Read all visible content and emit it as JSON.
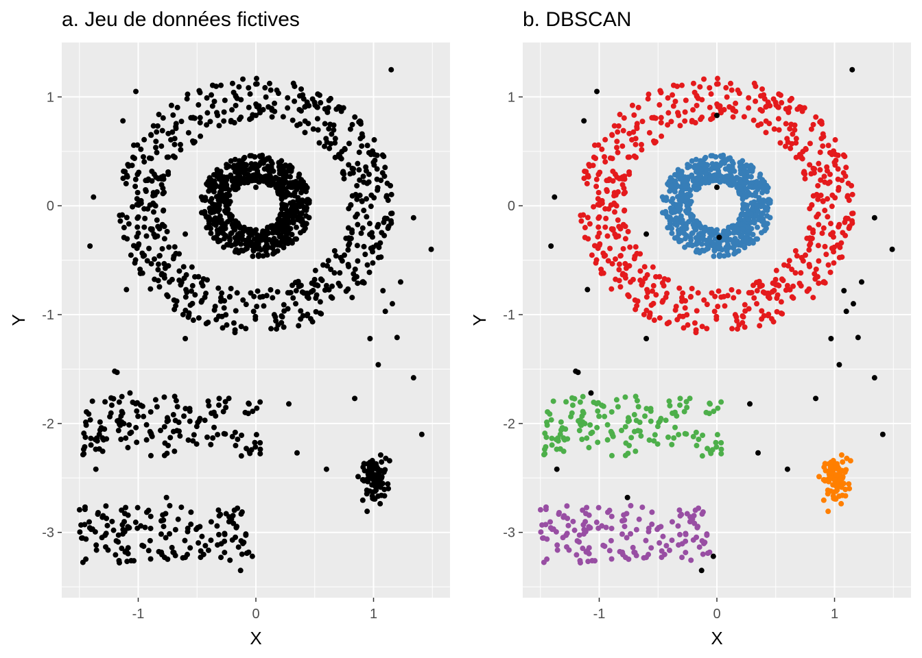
{
  "chart_data": [
    {
      "type": "scatter",
      "title": "a. Jeu de données fictives",
      "xlabel": "X",
      "ylabel": "Y",
      "xlim": [
        -1.65,
        1.65
      ],
      "ylim": [
        -3.6,
        1.5
      ],
      "xticks": [
        -1,
        0,
        1
      ],
      "yticks": [
        1,
        0,
        -1,
        -2,
        -3
      ],
      "grid": true,
      "background": "#EBEBEB",
      "colored_by_cluster": false,
      "point_color": "#000000",
      "clusters": [
        {
          "kind": "ring",
          "cx": 0,
          "cy": 0,
          "r_min": 0.22,
          "r_max": 0.47,
          "n": 700,
          "seed": 11
        },
        {
          "kind": "ring",
          "cx": 0,
          "cy": 0,
          "r_min": 0.78,
          "r_max": 1.18,
          "n": 600,
          "seed": 23
        },
        {
          "kind": "band",
          "x_min": -1.48,
          "x_max": 0.05,
          "y_min": -2.3,
          "y_max": -1.75,
          "n": 150,
          "seed": 37
        },
        {
          "kind": "band",
          "x_min": -1.5,
          "x_max": -0.05,
          "y_min": -3.28,
          "y_max": -2.75,
          "n": 150,
          "seed": 41
        },
        {
          "kind": "blob",
          "cx": 1.0,
          "cy": -2.52,
          "sx": 0.06,
          "sy": 0.1,
          "n": 90,
          "seed": 53
        }
      ],
      "noise": [
        [
          1.15,
          1.25
        ],
        [
          -1.02,
          1.05
        ],
        [
          -1.13,
          0.78
        ],
        [
          -1.38,
          0.08
        ],
        [
          -1.41,
          -0.37
        ],
        [
          -0.6,
          -0.26
        ],
        [
          0.0,
          0.83
        ],
        [
          0.0,
          0.17
        ],
        [
          0.02,
          -0.29
        ],
        [
          1.34,
          -0.11
        ],
        [
          1.49,
          -0.4
        ],
        [
          1.23,
          -0.7
        ],
        [
          1.08,
          -0.78
        ],
        [
          -1.1,
          -0.77
        ],
        [
          1.1,
          -0.97
        ],
        [
          1.16,
          -0.9
        ],
        [
          0.97,
          -1.22
        ],
        [
          1.2,
          -1.21
        ],
        [
          -0.6,
          -1.22
        ],
        [
          1.04,
          -1.46
        ],
        [
          -1.2,
          -1.52
        ],
        [
          -1.18,
          -1.53
        ],
        [
          1.34,
          -1.58
        ],
        [
          -1.07,
          -1.72
        ],
        [
          0.84,
          -1.77
        ],
        [
          0.28,
          -1.82
        ],
        [
          1.41,
          -2.1
        ],
        [
          0.35,
          -2.27
        ],
        [
          -1.36,
          -2.42
        ],
        [
          0.6,
          -2.42
        ],
        [
          -0.76,
          -2.68
        ],
        [
          -0.13,
          -3.35
        ],
        [
          -0.03,
          -3.22
        ]
      ]
    },
    {
      "type": "scatter",
      "title": "b. DBSCAN",
      "xlabel": "X",
      "ylabel": "Y",
      "xlim": [
        -1.65,
        1.65
      ],
      "ylim": [
        -3.6,
        1.5
      ],
      "xticks": [
        -1,
        0,
        1
      ],
      "yticks": [
        1,
        0,
        -1,
        -2,
        -3
      ],
      "grid": true,
      "background": "#EBEBEB",
      "colored_by_cluster": true,
      "noise_color": "#000000",
      "cluster_colors": [
        "#377EB8",
        "#E41A1C",
        "#4DAF4A",
        "#984EA3",
        "#FF7F00"
      ],
      "clusters": [
        {
          "kind": "ring",
          "cx": 0,
          "cy": 0,
          "r_min": 0.22,
          "r_max": 0.47,
          "n": 700,
          "seed": 11
        },
        {
          "kind": "ring",
          "cx": 0,
          "cy": 0,
          "r_min": 0.78,
          "r_max": 1.18,
          "n": 600,
          "seed": 23
        },
        {
          "kind": "band",
          "x_min": -1.48,
          "x_max": 0.05,
          "y_min": -2.3,
          "y_max": -1.75,
          "n": 150,
          "seed": 37
        },
        {
          "kind": "band",
          "x_min": -1.5,
          "x_max": -0.05,
          "y_min": -3.28,
          "y_max": -2.75,
          "n": 150,
          "seed": 41
        },
        {
          "kind": "blob",
          "cx": 1.0,
          "cy": -2.52,
          "sx": 0.06,
          "sy": 0.1,
          "n": 90,
          "seed": 53
        }
      ],
      "noise": [
        [
          1.15,
          1.25
        ],
        [
          -1.02,
          1.05
        ],
        [
          -1.13,
          0.78
        ],
        [
          -1.38,
          0.08
        ],
        [
          -1.41,
          -0.37
        ],
        [
          -0.6,
          -0.26
        ],
        [
          0.0,
          0.83
        ],
        [
          0.0,
          0.17
        ],
        [
          0.02,
          -0.29
        ],
        [
          1.34,
          -0.11
        ],
        [
          1.49,
          -0.4
        ],
        [
          1.23,
          -0.7
        ],
        [
          1.08,
          -0.78
        ],
        [
          -1.1,
          -0.77
        ],
        [
          1.1,
          -0.97
        ],
        [
          1.16,
          -0.9
        ],
        [
          0.97,
          -1.22
        ],
        [
          1.2,
          -1.21
        ],
        [
          -0.6,
          -1.22
        ],
        [
          1.04,
          -1.46
        ],
        [
          -1.2,
          -1.52
        ],
        [
          -1.18,
          -1.53
        ],
        [
          1.34,
          -1.58
        ],
        [
          -1.07,
          -1.72
        ],
        [
          0.84,
          -1.77
        ],
        [
          0.28,
          -1.82
        ],
        [
          1.41,
          -2.1
        ],
        [
          0.35,
          -2.27
        ],
        [
          -1.36,
          -2.42
        ],
        [
          0.6,
          -2.42
        ],
        [
          -0.76,
          -2.68
        ],
        [
          -0.13,
          -3.35
        ],
        [
          -0.03,
          -3.22
        ]
      ]
    }
  ]
}
